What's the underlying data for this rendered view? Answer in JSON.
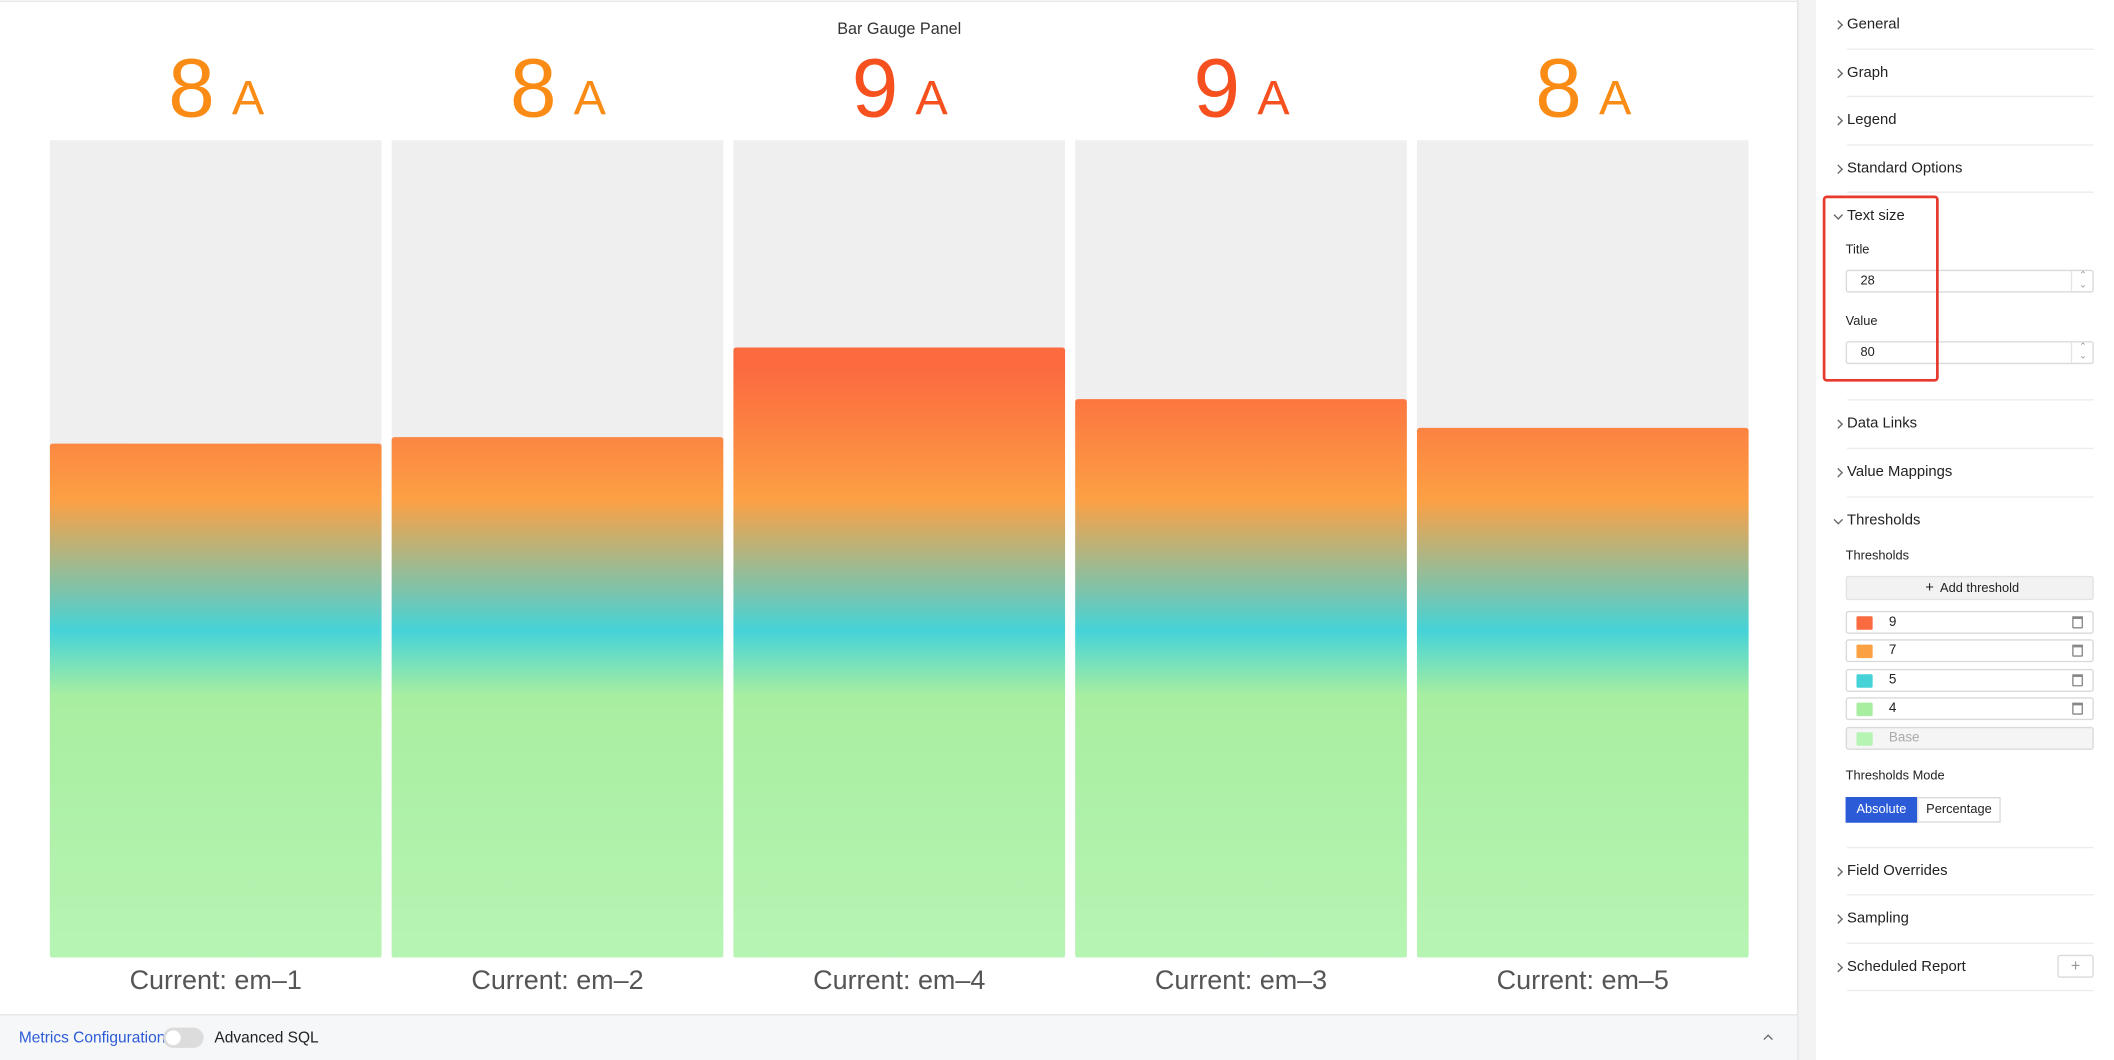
{
  "chart_data": {
    "type": "bar",
    "title": "Bar Gauge Panel",
    "categories": [
      "Current: em–1",
      "Current: em–2",
      "Current: em–4",
      "Current: em–3",
      "Current: em–5"
    ],
    "values": [
      7.86,
      7.96,
      9.33,
      8.54,
      8.1
    ],
    "value_labels": [
      "8",
      "8",
      "9",
      "9",
      "8"
    ],
    "unit": "A",
    "label_colors": [
      "#fa8c16",
      "#fa8c16",
      "#f5501e",
      "#f5501e",
      "#fa8c16"
    ],
    "ylim": [
      0,
      12.5
    ],
    "background_color": "#efefef",
    "base_color": "#b6f4b3",
    "thresholds": [
      {
        "value": 9,
        "color": "#fc6a3f"
      },
      {
        "value": 7,
        "color": "#fca044"
      },
      {
        "value": 5,
        "color": "#45d3d8"
      },
      {
        "value": 4,
        "color": "#a8eea0"
      }
    ]
  },
  "bottom_bar": {
    "link": "Metrics Configuration",
    "toggle_label": "Advanced SQL"
  },
  "options_panel": {
    "sections": [
      {
        "title": "General"
      },
      {
        "title": "Graph"
      },
      {
        "title": "Legend"
      },
      {
        "title": "Standard Options"
      },
      {
        "title": "Text size",
        "fields": [
          {
            "label": "Title",
            "value": 28
          },
          {
            "label": "Value",
            "value": 80
          }
        ]
      },
      {
        "title": "Data Links"
      },
      {
        "title": "Value Mappings"
      },
      {
        "title": "Thresholds",
        "label": "Thresholds",
        "add_button": "Add threshold",
        "base_placeholder": "Base",
        "mode_label": "Thresholds Mode",
        "modes": [
          "Absolute",
          "Percentage"
        ],
        "active_mode": 0
      },
      {
        "title": "Field Overrides"
      },
      {
        "title": "Sampling"
      },
      {
        "title": "Scheduled Report"
      }
    ]
  }
}
